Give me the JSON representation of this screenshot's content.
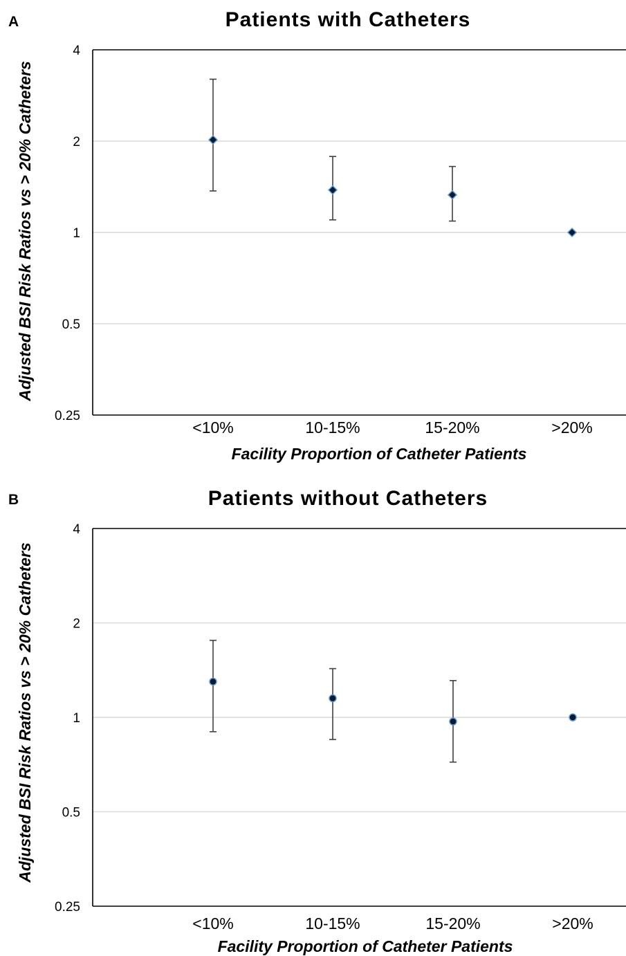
{
  "chart_data": [
    {
      "panel": "A",
      "type": "scatter",
      "title": "Patients with Catheters",
      "xlabel": "Facility Proportion of Catheter Patients",
      "ylabel": "Adjusted BSI Risk Ratios vs > 20% Catheters",
      "y_scale": "log2",
      "ylim": [
        0.25,
        4
      ],
      "y_ticks": [
        "0.25",
        "0.5",
        "1",
        "2",
        "4"
      ],
      "grid": true,
      "categories": [
        "<10%",
        "10-15%",
        "15-20%",
        ">20%"
      ],
      "marker": "diamond",
      "marker_color": "#0a1a33",
      "marker_edge_color": "#5b9bd5",
      "series": [
        {
          "values": [
            2.02,
            1.38,
            1.33,
            1.0
          ],
          "lower": [
            1.37,
            1.1,
            1.09,
            1.0
          ],
          "upper": [
            3.2,
            1.78,
            1.65,
            1.0
          ]
        }
      ]
    },
    {
      "panel": "B",
      "type": "scatter",
      "title": "Patients without Catheters",
      "xlabel": "Facility Proportion of Catheter Patients",
      "ylabel": "Adjusted BSI Risk Ratios vs > 20% Catheters",
      "y_scale": "log2",
      "ylim": [
        0.25,
        4
      ],
      "y_ticks": [
        "0.25",
        "0.5",
        "1",
        "2",
        "4"
      ],
      "grid": true,
      "categories": [
        "<10%",
        "10-15%",
        "15-20%",
        ">20%"
      ],
      "marker": "circle",
      "marker_color": "#0a1a33",
      "marker_edge_color": "#5b9bd5",
      "series": [
        {
          "values": [
            1.3,
            1.15,
            0.97,
            1.0
          ],
          "lower": [
            0.9,
            0.85,
            0.72,
            1.0
          ],
          "upper": [
            1.76,
            1.43,
            1.31,
            1.0
          ]
        }
      ]
    }
  ]
}
